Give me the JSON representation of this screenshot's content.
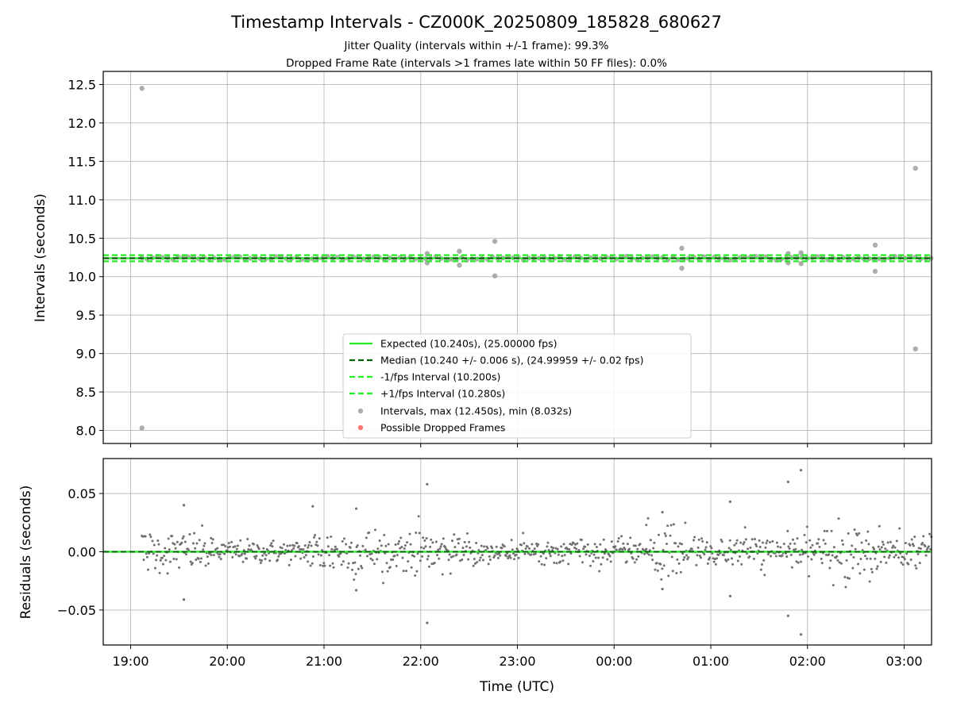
{
  "title": "Timestamp Intervals - CZ000K_20250809_185828_680627",
  "subtitle_1": "Jitter Quality (intervals within +/-1 frame): 99.3%",
  "subtitle_2": "Dropped Frame Rate (intervals >1 frames late within 50 FF files): 0.0%",
  "colors": {
    "expected": "#22ee22",
    "median": "#006400",
    "bounds": "#22ee22",
    "points": "#999999",
    "residual_points": "#707070",
    "dropped": "#ff5555",
    "grid": "#b0b0b0"
  },
  "chart_data": [
    {
      "type": "scatter",
      "ylabel": "Intervals (seconds)",
      "xlabel": "",
      "xlim": [
        "18:43",
        "03:17"
      ],
      "ylim": [
        7.83,
        12.67
      ],
      "x_ticks": [
        "19:00",
        "20:00",
        "21:00",
        "22:00",
        "23:00",
        "00:00",
        "01:00",
        "02:00",
        "03:00"
      ],
      "y_ticks": [
        8.0,
        8.5,
        9.0,
        9.5,
        10.0,
        10.5,
        11.0,
        11.5,
        12.0,
        12.5
      ],
      "y_tick_labels": [
        "8.0",
        "8.5",
        "9.0",
        "9.5",
        "10.0",
        "10.5",
        "11.0",
        "11.5",
        "12.0",
        "12.5"
      ],
      "grid": true,
      "legend_position": "lower-center",
      "reference_lines": [
        {
          "name": "Expected (10.240s), (25.00000 fps)",
          "y": 10.24,
          "style": "solid"
        },
        {
          "name": "Median (10.240 +/- 0.006 s), (24.99959 +/- 0.02 fps)",
          "y": 10.24,
          "style": "dashed"
        },
        {
          "name": "-1/fps Interval (10.200s)",
          "y": 10.2,
          "style": "dashed"
        },
        {
          "name": "+1/fps Interval (10.280s)",
          "y": 10.28,
          "style": "dashed"
        }
      ],
      "series": [
        {
          "name": "Intervals, max (12.450s), min (8.032s)",
          "marker": "circle"
        },
        {
          "name": "Possible Dropped Frames",
          "marker": "circle"
        }
      ],
      "outliers": [
        {
          "x": "19:07",
          "y": 12.45
        },
        {
          "x": "19:07",
          "y": 8.032
        },
        {
          "x": "22:04",
          "y": 10.3
        },
        {
          "x": "22:04",
          "y": 10.18
        },
        {
          "x": "22:24",
          "y": 10.33
        },
        {
          "x": "22:24",
          "y": 10.15
        },
        {
          "x": "22:46",
          "y": 10.46
        },
        {
          "x": "22:46",
          "y": 10.01
        },
        {
          "x": "00:42",
          "y": 10.37
        },
        {
          "x": "00:42",
          "y": 10.11
        },
        {
          "x": "01:48",
          "y": 10.3
        },
        {
          "x": "01:48",
          "y": 10.18
        },
        {
          "x": "01:56",
          "y": 10.31
        },
        {
          "x": "01:56",
          "y": 10.17
        },
        {
          "x": "02:42",
          "y": 10.41
        },
        {
          "x": "02:42",
          "y": 10.07
        },
        {
          "x": "03:07",
          "y": 11.41
        },
        {
          "x": "03:07",
          "y": 9.06
        }
      ],
      "dense_band": {
        "x_start": "19:07",
        "x_end": "03:17",
        "y_center": 10.24,
        "y_spread": 0.025
      }
    },
    {
      "type": "scatter",
      "ylabel": "Residuals (seconds)",
      "xlabel": "Time (UTC)",
      "xlim": [
        "18:43",
        "03:17"
      ],
      "ylim": [
        -0.08,
        0.08
      ],
      "x_ticks": [
        "19:00",
        "20:00",
        "21:00",
        "22:00",
        "23:00",
        "00:00",
        "01:00",
        "02:00",
        "03:00"
      ],
      "y_ticks": [
        -0.05,
        0.0,
        0.05
      ],
      "y_tick_labels": [
        "−0.05",
        "0.00",
        "0.05"
      ],
      "grid": true,
      "reference_lines": [
        {
          "name": "zero",
          "y": 0.0,
          "style": "solid"
        },
        {
          "name": "median",
          "y": 0.0,
          "style": "dashed"
        }
      ],
      "outliers": [
        {
          "x": "19:33",
          "y": 0.04
        },
        {
          "x": "19:33",
          "y": -0.041
        },
        {
          "x": "22:04",
          "y": 0.058
        },
        {
          "x": "22:04",
          "y": -0.061
        },
        {
          "x": "01:48",
          "y": 0.06
        },
        {
          "x": "01:48",
          "y": -0.055
        },
        {
          "x": "01:56",
          "y": 0.07
        },
        {
          "x": "01:56",
          "y": -0.071
        },
        {
          "x": "01:12",
          "y": 0.043
        },
        {
          "x": "01:12",
          "y": -0.038
        },
        {
          "x": "20:53",
          "y": 0.039
        },
        {
          "x": "21:20",
          "y": 0.037
        },
        {
          "x": "21:20",
          "y": -0.033
        },
        {
          "x": "00:30",
          "y": 0.034
        },
        {
          "x": "00:30",
          "y": -0.032
        }
      ],
      "residual_spread": [
        {
          "x_start": "19:07",
          "x_end": "19:50",
          "sd": 0.009
        },
        {
          "x_start": "19:50",
          "x_end": "20:50",
          "sd": 0.005
        },
        {
          "x_start": "20:50",
          "x_end": "21:40",
          "sd": 0.011
        },
        {
          "x_start": "21:40",
          "x_end": "22:30",
          "sd": 0.008
        },
        {
          "x_start": "22:30",
          "x_end": "00:20",
          "sd": 0.005
        },
        {
          "x_start": "00:20",
          "x_end": "00:45",
          "sd": 0.013
        },
        {
          "x_start": "00:45",
          "x_end": "02:10",
          "sd": 0.007
        },
        {
          "x_start": "02:10",
          "x_end": "02:45",
          "sd": 0.012
        },
        {
          "x_start": "02:45",
          "x_end": "03:17",
          "sd": 0.008
        }
      ]
    }
  ]
}
